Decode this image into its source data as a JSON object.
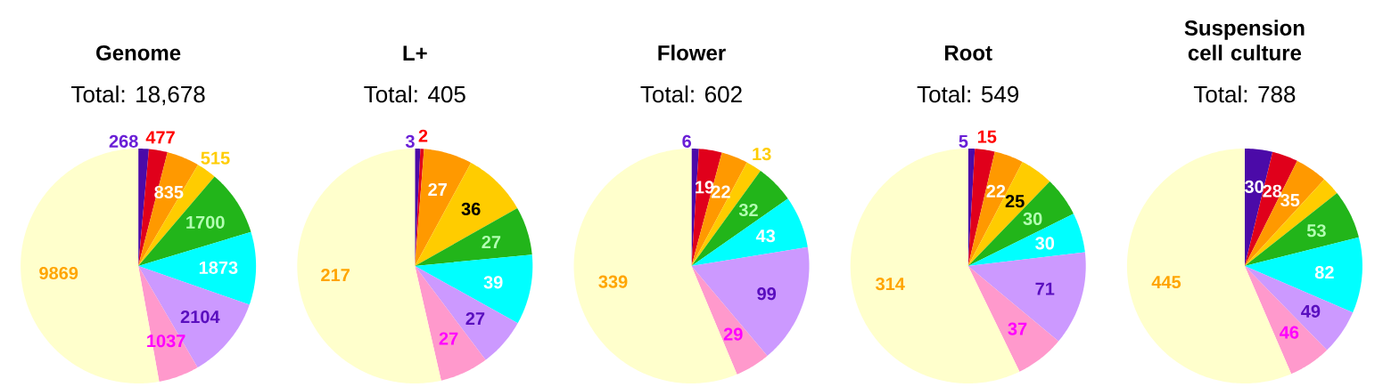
{
  "chart_data": [
    {
      "type": "pie",
      "title": "Genome",
      "subtitle": "Total: 18,678",
      "categories": [
        null,
        null,
        null,
        null,
        null,
        null,
        null,
        null,
        null
      ],
      "values": [
        268,
        477,
        835,
        515,
        1700,
        1873,
        2104,
        1037,
        9869
      ],
      "colors": [
        "#4b0aa8",
        "#e0001b",
        "#ff9900",
        "#ffcc00",
        "#22b51a",
        "#00ffff",
        "#cc99ff",
        "#ff99cc",
        "#ffffcc"
      ],
      "data_labels": true
    },
    {
      "type": "pie",
      "title": "L+",
      "subtitle": "Total: 405",
      "categories": [
        null,
        null,
        null,
        null,
        null,
        null,
        null,
        null,
        null
      ],
      "values": [
        3,
        2,
        27,
        36,
        27,
        39,
        27,
        27,
        217
      ],
      "colors": [
        "#4b0aa8",
        "#e0001b",
        "#ff9900",
        "#ffcc00",
        "#22b51a",
        "#00ffff",
        "#cc99ff",
        "#ff99cc",
        "#ffffcc"
      ],
      "data_labels": true
    },
    {
      "type": "pie",
      "title": "Flower",
      "subtitle": "Total: 602",
      "categories": [
        null,
        null,
        null,
        null,
        null,
        null,
        null,
        null,
        null
      ],
      "values": [
        6,
        19,
        22,
        13,
        32,
        43,
        99,
        29,
        339
      ],
      "colors": [
        "#4b0aa8",
        "#e0001b",
        "#ff9900",
        "#ffcc00",
        "#22b51a",
        "#00ffff",
        "#cc99ff",
        "#ff99cc",
        "#ffffcc"
      ],
      "data_labels": true
    },
    {
      "type": "pie",
      "title": "Root",
      "subtitle": "Total: 549",
      "categories": [
        null,
        null,
        null,
        null,
        null,
        null,
        null,
        null,
        null
      ],
      "values": [
        5,
        15,
        22,
        25,
        30,
        30,
        71,
        37,
        314
      ],
      "colors": [
        "#4b0aa8",
        "#e0001b",
        "#ff9900",
        "#ffcc00",
        "#22b51a",
        "#00ffff",
        "#cc99ff",
        "#ff99cc",
        "#ffffcc"
      ],
      "data_labels": true
    },
    {
      "type": "pie",
      "title": "Suspension cell culture",
      "subtitle": "Total: 788",
      "categories": [
        null,
        null,
        null,
        null,
        null,
        null,
        null,
        null,
        null
      ],
      "values": [
        30,
        28,
        35,
        20,
        53,
        82,
        49,
        46,
        445
      ],
      "colors": [
        "#4b0aa8",
        "#e0001b",
        "#ff9900",
        "#ffcc00",
        "#22b51a",
        "#00ffff",
        "#cc99ff",
        "#ff99cc",
        "#ffffcc"
      ],
      "value_labels": [
        "30",
        "28",
        "35",
        null,
        "53",
        "82",
        "49",
        "46",
        "445"
      ]
    }
  ]
}
